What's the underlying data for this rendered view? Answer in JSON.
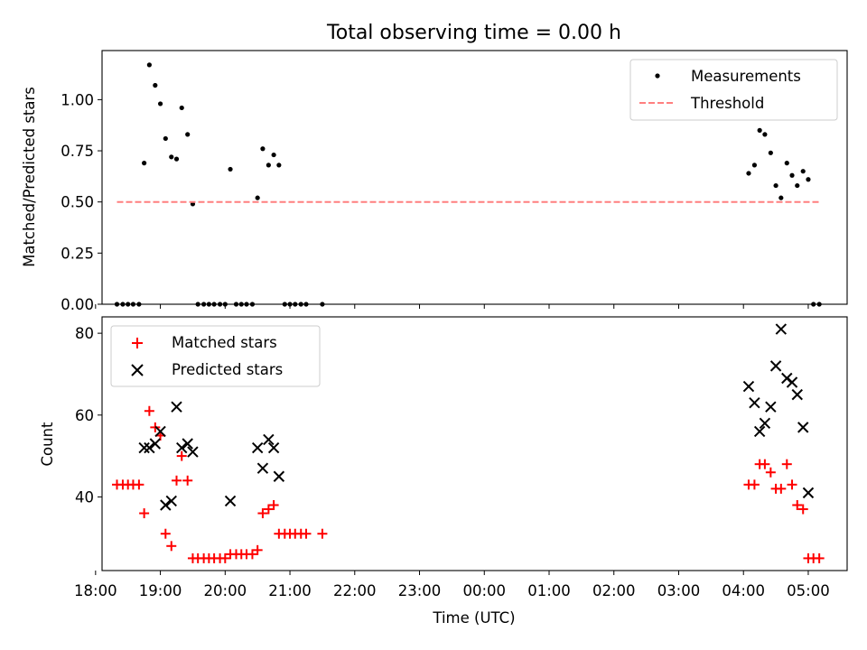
{
  "chart_data": [
    {
      "type": "scatter",
      "title": "Total observing time = 0.00 h",
      "xlabel": "",
      "ylabel": "Matched/Predicted stars",
      "xlim": [
        18.1,
        29.6
      ],
      "ylim": [
        0,
        1.24
      ],
      "yticks": [
        0.0,
        0.25,
        0.5,
        0.75,
        1.0
      ],
      "ytick_labels": [
        "0.00",
        "0.25",
        "0.50",
        "0.75",
        "1.00"
      ],
      "legend_position": "top-right",
      "series": [
        {
          "name": "Measurements",
          "marker": "dot",
          "color": "#000000",
          "points": [
            [
              18.33,
              0
            ],
            [
              18.42,
              0
            ],
            [
              18.5,
              0
            ],
            [
              18.58,
              0
            ],
            [
              18.67,
              0
            ],
            [
              18.75,
              0.69
            ],
            [
              18.83,
              1.17
            ],
            [
              18.92,
              1.07
            ],
            [
              19.0,
              0.98
            ],
            [
              19.08,
              0.81
            ],
            [
              19.17,
              0.72
            ],
            [
              19.25,
              0.71
            ],
            [
              19.33,
              0.96
            ],
            [
              19.42,
              0.83
            ],
            [
              19.5,
              0.49
            ],
            [
              19.58,
              0
            ],
            [
              19.67,
              0
            ],
            [
              19.75,
              0
            ],
            [
              19.83,
              0
            ],
            [
              19.92,
              0
            ],
            [
              20.0,
              0
            ],
            [
              20.08,
              0.66
            ],
            [
              20.17,
              0
            ],
            [
              20.25,
              0
            ],
            [
              20.33,
              0
            ],
            [
              20.42,
              0
            ],
            [
              20.5,
              0.52
            ],
            [
              20.58,
              0.76
            ],
            [
              20.67,
              0.68
            ],
            [
              20.75,
              0.73
            ],
            [
              20.83,
              0.68
            ],
            [
              20.92,
              0
            ],
            [
              21.0,
              0
            ],
            [
              21.08,
              0
            ],
            [
              21.17,
              0
            ],
            [
              21.25,
              0
            ],
            [
              21.5,
              0
            ],
            [
              28.08,
              0.64
            ],
            [
              28.17,
              0.68
            ],
            [
              28.25,
              0.85
            ],
            [
              28.33,
              0.83
            ],
            [
              28.42,
              0.74
            ],
            [
              28.5,
              0.58
            ],
            [
              28.58,
              0.52
            ],
            [
              28.67,
              0.69
            ],
            [
              28.75,
              0.63
            ],
            [
              28.83,
              0.58
            ],
            [
              28.92,
              0.65
            ],
            [
              29.0,
              0.61
            ],
            [
              29.08,
              0
            ],
            [
              29.17,
              0
            ]
          ]
        },
        {
          "name": "Threshold",
          "marker": "dashed-line",
          "color": "#ff7f7f",
          "points": [
            [
              18.33,
              0.5
            ],
            [
              29.17,
              0.5
            ]
          ]
        }
      ]
    },
    {
      "type": "scatter",
      "title": "",
      "xlabel": "Time (UTC)",
      "ylabel": "Count",
      "xlim": [
        18.1,
        29.6
      ],
      "ylim": [
        22,
        84
      ],
      "yticks": [
        40,
        60,
        80
      ],
      "ytick_labels": [
        "40",
        "60",
        "80"
      ],
      "xticks": [
        18,
        19,
        20,
        21,
        22,
        23,
        24,
        25,
        26,
        27,
        28,
        29
      ],
      "xtick_labels": [
        "18:00",
        "19:00",
        "20:00",
        "21:00",
        "22:00",
        "23:00",
        "00:00",
        "01:00",
        "02:00",
        "03:00",
        "04:00",
        "05:00"
      ],
      "legend_position": "top-left",
      "series": [
        {
          "name": "Matched stars",
          "marker": "plus",
          "color": "#ff0000",
          "points": [
            [
              18.33,
              43
            ],
            [
              18.42,
              43
            ],
            [
              18.5,
              43
            ],
            [
              18.58,
              43
            ],
            [
              18.67,
              43
            ],
            [
              18.75,
              36
            ],
            [
              18.83,
              61
            ],
            [
              18.92,
              57
            ],
            [
              19.0,
              55
            ],
            [
              19.08,
              31
            ],
            [
              19.17,
              28
            ],
            [
              19.25,
              44
            ],
            [
              19.33,
              50
            ],
            [
              19.42,
              44
            ],
            [
              19.5,
              25
            ],
            [
              19.58,
              25
            ],
            [
              19.67,
              25
            ],
            [
              19.75,
              25
            ],
            [
              19.83,
              25
            ],
            [
              19.92,
              25
            ],
            [
              20.0,
              25
            ],
            [
              20.08,
              26
            ],
            [
              20.17,
              26
            ],
            [
              20.25,
              26
            ],
            [
              20.33,
              26
            ],
            [
              20.42,
              26
            ],
            [
              20.5,
              27
            ],
            [
              20.58,
              36
            ],
            [
              20.67,
              37
            ],
            [
              20.75,
              38
            ],
            [
              20.83,
              31
            ],
            [
              20.92,
              31
            ],
            [
              21.0,
              31
            ],
            [
              21.08,
              31
            ],
            [
              21.17,
              31
            ],
            [
              21.25,
              31
            ],
            [
              21.5,
              31
            ],
            [
              28.08,
              43
            ],
            [
              28.17,
              43
            ],
            [
              28.25,
              48
            ],
            [
              28.33,
              48
            ],
            [
              28.42,
              46
            ],
            [
              28.5,
              42
            ],
            [
              28.58,
              42
            ],
            [
              28.67,
              48
            ],
            [
              28.75,
              43
            ],
            [
              28.83,
              38
            ],
            [
              28.92,
              37
            ],
            [
              29.0,
              25
            ],
            [
              29.08,
              25
            ],
            [
              29.17,
              25
            ]
          ]
        },
        {
          "name": "Predicted stars",
          "marker": "x",
          "color": "#000000",
          "points": [
            [
              18.75,
              52
            ],
            [
              18.83,
              52
            ],
            [
              18.92,
              53
            ],
            [
              19.0,
              56
            ],
            [
              19.08,
              38
            ],
            [
              19.17,
              39
            ],
            [
              19.25,
              62
            ],
            [
              19.33,
              52
            ],
            [
              19.42,
              53
            ],
            [
              19.5,
              51
            ],
            [
              20.08,
              39
            ],
            [
              20.5,
              52
            ],
            [
              20.58,
              47
            ],
            [
              20.67,
              54
            ],
            [
              20.75,
              52
            ],
            [
              20.83,
              45
            ],
            [
              28.08,
              67
            ],
            [
              28.17,
              63
            ],
            [
              28.25,
              56
            ],
            [
              28.33,
              58
            ],
            [
              28.42,
              62
            ],
            [
              28.5,
              72
            ],
            [
              28.58,
              81
            ],
            [
              28.67,
              69
            ],
            [
              28.75,
              68
            ],
            [
              28.83,
              65
            ],
            [
              28.92,
              57
            ],
            [
              29.0,
              41
            ]
          ]
        }
      ]
    }
  ]
}
